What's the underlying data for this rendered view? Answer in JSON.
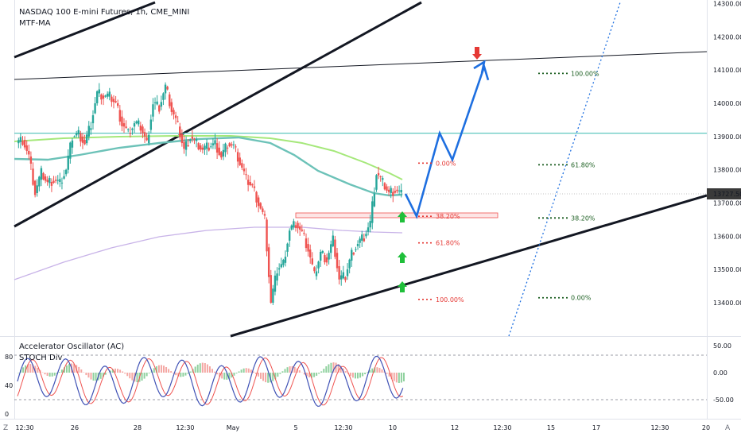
{
  "header": {
    "symbol_line": "NASDAQ 100 E-mini Futures, 1h, CME_MINI",
    "indicator_main": "MTF-MA",
    "indicator_sub1": "Accelerator Oscillator (AC)",
    "indicator_sub2": "STOCH Div"
  },
  "colors": {
    "bull": "#26a69a",
    "bear": "#ef5350",
    "ma_green": "#a5e87a",
    "ma_teal": "#6cc2b8",
    "ma_purple": "#c8b3e8",
    "projection": "#1e6fe0",
    "fib_red": "#e53935",
    "fib_green": "#1b5e20",
    "hline": "#5fc7c0",
    "stoch_k": "#3f51b5",
    "stoch_d": "#ef5350"
  },
  "corner": {
    "left": "Z",
    "right": "A"
  },
  "chart_data": {
    "type": "candlestick",
    "y_axis": {
      "ticks": [
        14300,
        14200,
        14100,
        14000,
        13900,
        13800,
        13700,
        13600,
        13500,
        13400
      ],
      "tick_labels": [
        "14300.00",
        "14200.00",
        "14100.00",
        "14000.00",
        "13900.00",
        "13800.00",
        "13700.00",
        "13600.00",
        "13500.00",
        "13400.00"
      ],
      "range": [
        13320,
        14330
      ]
    },
    "x_axis": {
      "tick_labels": [
        "12:30",
        "26",
        "28",
        "12:30",
        "May",
        "5",
        "12:30",
        "10",
        "12",
        "12:30",
        "15",
        "17",
        "12:30",
        "20"
      ]
    },
    "last_price": "13727.50",
    "price_path": [
      13880,
      13890,
      13840,
      13730,
      13790,
      13760,
      13770,
      13760,
      13800,
      13900,
      13910,
      13880,
      13940,
      14030,
      14020,
      14020,
      14000,
      13940,
      13910,
      13940,
      13930,
      13880,
      14000,
      13990,
      14050,
      13980,
      13930,
      13860,
      13900,
      13880,
      13860,
      13870,
      13880,
      13840,
      13880,
      13870,
      13820,
      13770,
      13750,
      13700,
      13650,
      13400,
      13500,
      13520,
      13620,
      13640,
      13610,
      13560,
      13480,
      13550,
      13530,
      13590,
      13470,
      13480,
      13550,
      13580,
      13600,
      13640,
      13790,
      13760,
      13730,
      13740,
      13727.5
    ],
    "horizontal_line": 13910,
    "projection_path": [
      13727.5,
      13660,
      13910,
      13830,
      14110,
      14070
    ],
    "fib_left": {
      "levels": [
        "0.00%",
        "38.20%",
        "61.80%",
        "100.00%"
      ],
      "values": [
        13820,
        13660,
        13580,
        13410
      ]
    },
    "fib_right": {
      "levels": [
        "100.00%",
        "61.80%",
        "38.20%",
        "0.00%"
      ],
      "values": [
        14090,
        13815,
        13655,
        13415
      ]
    },
    "oscillator": {
      "ticks": [
        "50.00",
        "0.00",
        "-50.00"
      ],
      "stoch_ticks": [
        "80",
        "40",
        "0"
      ]
    }
  }
}
